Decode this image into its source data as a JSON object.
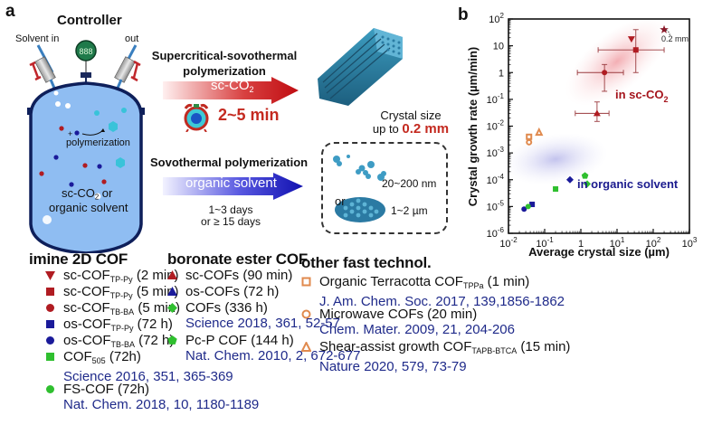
{
  "panel_a": {
    "letter": "a",
    "controller_label": "Controller",
    "gauge_display": "888",
    "solvent_in_label": "Solvent in",
    "out_label": "out",
    "reaction_label": "polymerization",
    "medium_label_1": "sc-CO",
    "medium_label_1_sub": "2",
    "medium_label_1_suffix": " or",
    "medium_label_2": "organic solvent",
    "top_route": {
      "title_line1": "Supercritical-sovothermal",
      "title_line2": "polymerization",
      "arrow_label": "sc-CO",
      "arrow_label_sub": "2",
      "time": "2~5 min",
      "crystal_line1": "Crystal size",
      "crystal_line2_prefix": "up to ",
      "crystal_line2_value": "0.2 mm"
    },
    "bottom_route": {
      "title": "Sovothermal polymerization",
      "arrow_label": "organic solvent",
      "time_line1": "1~3 days",
      "time_line2": "or ≥ 15 days",
      "or_label": "or",
      "size_small": "20~200 nm",
      "size_large": "1~2 µm"
    }
  },
  "panel_b": {
    "letter": "b",
    "region_sc": "in sc-CO",
    "region_sc_sub": "2",
    "region_org": "in organic solvent",
    "star_note": "0.2 mm"
  },
  "chart_data": {
    "type": "scatter",
    "title": "",
    "xlabel": "Average crystal size (µm)",
    "ylabel": "Crystal growth rate (µm/min)",
    "xscale": "log",
    "yscale": "log",
    "xlim": [
      0.01,
      1000
    ],
    "ylim": [
      1e-06,
      100
    ],
    "xticks": [
      "10^-2",
      "10^-1",
      "1",
      "10^1",
      "10^2",
      "10^3"
    ],
    "yticks": [
      "10^2",
      "10",
      "1",
      "10^-1",
      "10^-2",
      "10^-3",
      "10^-4",
      "10^-5",
      "10^-6"
    ],
    "grid": false,
    "colors": {
      "sc": "#b01c22",
      "os": "#1a1a9a",
      "lit": "#2fbf2f",
      "fast": "#e08a4e"
    },
    "series": [
      {
        "name": "sc-COF TP-Py (2 min)",
        "marker": "triangle-down",
        "color": "#b01c22",
        "points": [
          {
            "x": 25,
            "y": 18
          }
        ]
      },
      {
        "name": "sc-COF TP-Py (5 min)",
        "marker": "square",
        "color": "#b01c22",
        "points": [
          {
            "x": 33,
            "y": 7,
            "xerr": [
              3,
              200
            ],
            "yerr": [
              1,
              40
            ]
          }
        ]
      },
      {
        "name": "sc-COF TB-BA (5 min)",
        "marker": "circle",
        "color": "#b01c22",
        "points": [
          {
            "x": 4.5,
            "y": 1,
            "xerr": [
              0.8,
              15
            ],
            "yerr": [
              0.2,
              2
            ]
          }
        ]
      },
      {
        "name": "os-COF TP-Py (72 h)",
        "marker": "square",
        "color": "#1a1a9a",
        "points": [
          {
            "x": 0.045,
            "y": 1.2e-05
          }
        ]
      },
      {
        "name": "os-COF TB-BA (72 h)",
        "marker": "circle",
        "color": "#1a1a9a",
        "points": [
          {
            "x": 0.027,
            "y": 8e-06
          }
        ]
      },
      {
        "name": "COF505 (72h)",
        "marker": "square",
        "color": "#2fbf2f",
        "points": [
          {
            "x": 0.2,
            "y": 4.5e-05
          }
        ]
      },
      {
        "name": "FS-COF (72h)",
        "marker": "circle",
        "color": "#2fbf2f",
        "points": [
          {
            "x": 0.035,
            "y": 1e-05
          }
        ]
      },
      {
        "name": "sc-COFs (90 min)",
        "marker": "triangle-up",
        "color": "#b01c22",
        "points": [
          {
            "x": 2.8,
            "y": 0.03,
            "xerr": [
              0.7,
              6
            ],
            "yerr": [
              0.015,
              0.08
            ]
          }
        ]
      },
      {
        "name": "os-COFs (72 h)",
        "marker": "diamond",
        "color": "#1a1a9a",
        "points": [
          {
            "x": 0.5,
            "y": 0.0001
          }
        ]
      },
      {
        "name": "COFs (336 h)",
        "marker": "diamond",
        "color": "#2fbf2f",
        "points": [
          {
            "x": 1.5,
            "y": 7e-05
          }
        ]
      },
      {
        "name": "Pc-P COF (144 h)",
        "marker": "pentagon",
        "color": "#2fbf2f",
        "points": [
          {
            "x": 1.3,
            "y": 0.00014
          }
        ]
      },
      {
        "name": "Organic Terracotta COF TPPa (1 min)",
        "marker": "open-square",
        "color": "#e08a4e",
        "points": [
          {
            "x": 0.037,
            "y": 0.004
          }
        ]
      },
      {
        "name": "Microwave COFs (20 min)",
        "marker": "open-circle",
        "color": "#e08a4e",
        "points": [
          {
            "x": 0.037,
            "y": 0.0025
          }
        ]
      },
      {
        "name": "Shear-assist growth COF TAPB-BTCA (15 min)",
        "marker": "open-triangle",
        "color": "#e08a4e",
        "points": [
          {
            "x": 0.07,
            "y": 0.006
          }
        ]
      },
      {
        "name": "0.2 mm crystal",
        "marker": "star",
        "color": "#8a1a2a",
        "points": [
          {
            "x": 200,
            "y": 40
          }
        ]
      }
    ]
  },
  "legends": {
    "imine": {
      "title": "imine 2D COF",
      "items": [
        {
          "marker": "triangle-down",
          "color": "#b01c22",
          "name": "sc-COF",
          "sub": "TP-Py",
          "suffix": " (2 min)",
          "cite": ""
        },
        {
          "marker": "square",
          "color": "#b01c22",
          "name": "sc-COF",
          "sub": "TP-Py",
          "suffix": " (5 min)",
          "cite": ""
        },
        {
          "marker": "circle",
          "color": "#b01c22",
          "name": "sc-COF",
          "sub": "TB-BA",
          "suffix": " (5 min)",
          "cite": ""
        },
        {
          "marker": "square",
          "color": "#1a1a9a",
          "name": "os-COF",
          "sub": "TP-Py",
          "suffix": " (72 h)",
          "cite": ""
        },
        {
          "marker": "circle",
          "color": "#1a1a9a",
          "name": "os-COF",
          "sub": "TB-BA",
          "suffix": " (72 h)",
          "cite": ""
        },
        {
          "marker": "square",
          "color": "#2fbf2f",
          "name": "COF",
          "sub": "505",
          "suffix": " (72h)",
          "cite": "Science 2016, 351, 365-369"
        },
        {
          "marker": "circle",
          "color": "#2fbf2f",
          "name": "FS-COF",
          "sub": "",
          "suffix": " (72h)",
          "cite": "Nat. Chem. 2018, 10, 1180-1189"
        }
      ]
    },
    "boronate": {
      "title": "boronate ester COF",
      "items": [
        {
          "marker": "triangle-up",
          "color": "#b01c22",
          "name": "sc-COFs",
          "sub": "",
          "suffix": " (90 min)",
          "cite": ""
        },
        {
          "marker": "triangle-up",
          "color": "#1a1a9a",
          "name": "os-COFs",
          "sub": "",
          "suffix": " (72 h)",
          "cite": ""
        },
        {
          "marker": "diamond",
          "color": "#2fbf2f",
          "name": "COFs",
          "sub": "",
          "suffix": " (336 h)",
          "cite": "Science 2018, 361, 52-57"
        },
        {
          "marker": "pentagon",
          "color": "#2fbf2f",
          "name": "Pc-P COF",
          "sub": "",
          "suffix": " (144 h)",
          "cite": "Nat. Chem. 2010, 2, 672-677"
        }
      ]
    },
    "fast": {
      "title": "other fast technol.",
      "items": [
        {
          "marker": "open-square",
          "color": "#e08a4e",
          "name": "Organic Terracotta COF",
          "sub": "TPPa",
          "suffix": " (1 min)",
          "cite": "J. Am. Chem. Soc. 2017, 139,1856-1862"
        },
        {
          "marker": "open-circle",
          "color": "#e08a4e",
          "name": "Microwave COFs",
          "sub": "",
          "suffix": " (20 min)",
          "cite": "Chem. Mater. 2009, 21, 204-206"
        },
        {
          "marker": "open-triangle",
          "color": "#e08a4e",
          "name": "Shear-assist growth COF",
          "sub": "TAPB-BTCA",
          "suffix": " (15 min)",
          "cite": "Nature 2020, 579, 73-79"
        }
      ]
    }
  }
}
